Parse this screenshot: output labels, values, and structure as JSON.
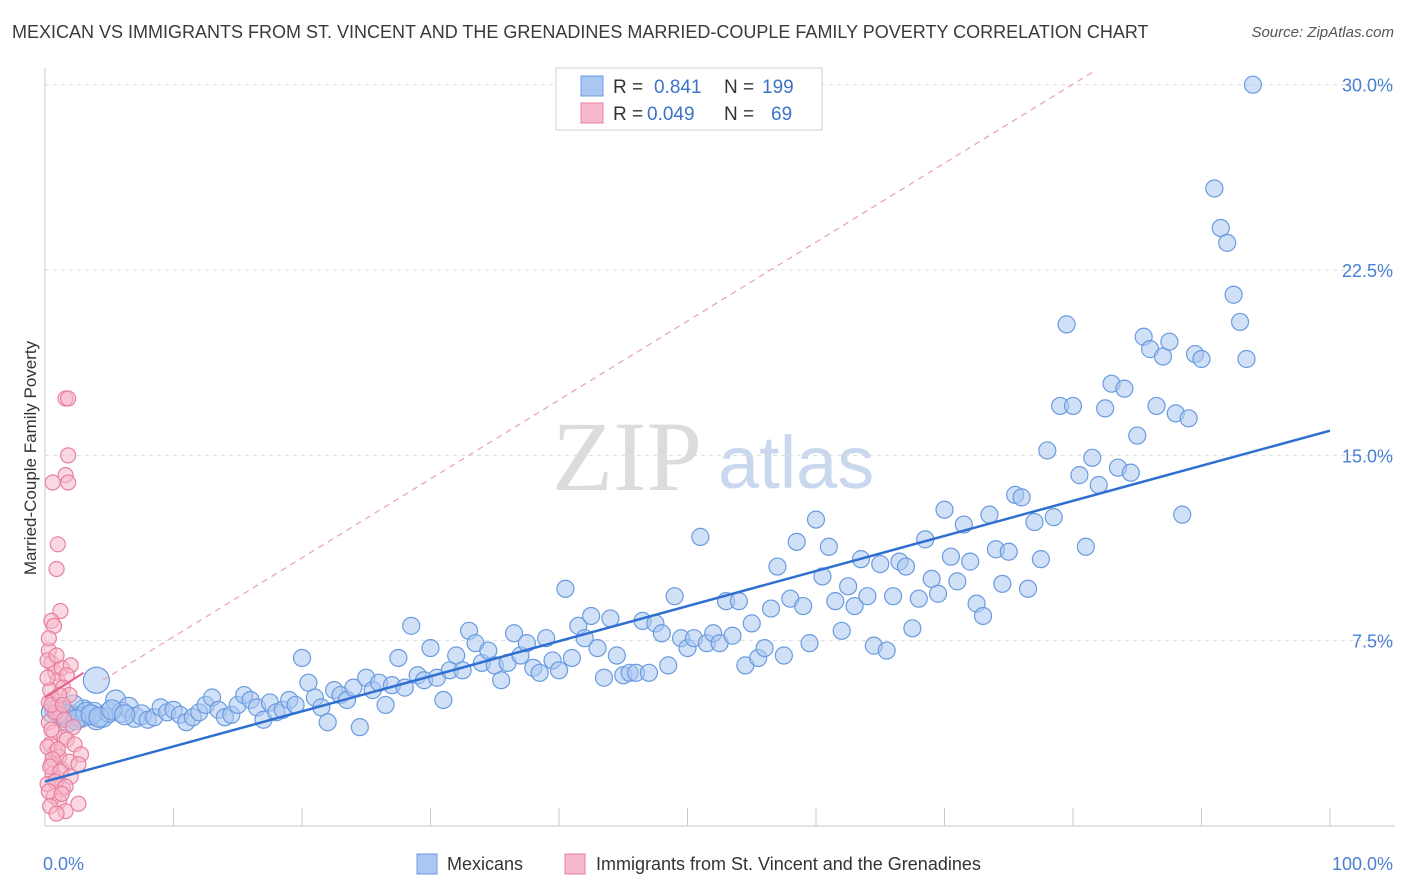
{
  "title": "MEXICAN VS IMMIGRANTS FROM ST. VINCENT AND THE GRENADINES MARRIED-COUPLE FAMILY POVERTY CORRELATION CHART",
  "source": "Source: ZipAtlas.com",
  "watermark": {
    "zip": "ZIP",
    "atlas": "atlas"
  },
  "legend": {
    "rows": [
      {
        "r_label": "R =",
        "r_value": "0.841",
        "n_label": "N =",
        "n_value": "199",
        "color": "#a9c7f0",
        "edge": "#6a9be0"
      },
      {
        "r_label": "R =",
        "r_value": "0.049",
        "n_label": "N =",
        "n_value": "69",
        "color": "#f6b8cb",
        "edge": "#e8809f"
      }
    ]
  },
  "bottom_legend": [
    {
      "label": "Mexicans",
      "color": "#a9c7f0",
      "edge": "#6a9be0"
    },
    {
      "label": "Immigrants from St. Vincent and the Grenadines",
      "color": "#f6b8cb",
      "edge": "#e8809f"
    }
  ],
  "chart_data": {
    "type": "scatter",
    "title": "MEXICAN VS IMMIGRANTS FROM ST. VINCENT AND THE GRENADINES MARRIED-COUPLE FAMILY POVERTY CORRELATION CHART",
    "xlabel": "",
    "ylabel": "Married-Couple Family Poverty",
    "xlim": [
      0,
      100
    ],
    "ylim": [
      0,
      31
    ],
    "x_tick_labels": [
      "0.0%",
      "100.0%"
    ],
    "y_ticks": [
      7.5,
      15.0,
      22.5,
      30.0
    ],
    "y_tick_labels": [
      "7.5%",
      "15.0%",
      "22.5%",
      "30.0%"
    ],
    "grid": "horizontal dashed",
    "legend_position": "top-center",
    "series": [
      {
        "name": "Mexicans",
        "color": "#a9c7f0",
        "edge": "#6a9be0",
        "trend": {
          "x": [
            0,
            100
          ],
          "y": [
            1.8,
            16.0
          ],
          "color": "#2f6fd0"
        },
        "points": [
          [
            1.5,
            4.6
          ],
          [
            2.0,
            4.5
          ],
          [
            2.5,
            4.4
          ],
          [
            3.0,
            4.7
          ],
          [
            3.5,
            4.5
          ],
          [
            4.0,
            4.3
          ],
          [
            1.0,
            4.8
          ],
          [
            1.8,
            4.2
          ],
          [
            2.2,
            4.9
          ],
          [
            3.8,
            4.6
          ],
          [
            4.5,
            4.4
          ],
          [
            5.0,
            4.6
          ],
          [
            4.0,
            5.9
          ],
          [
            5.5,
            5.1
          ],
          [
            6.0,
            4.6
          ],
          [
            6.5,
            4.8
          ],
          [
            7.0,
            4.4
          ],
          [
            7.5,
            4.5
          ],
          [
            8.0,
            4.3
          ],
          [
            8.5,
            4.4
          ],
          [
            9.0,
            4.8
          ],
          [
            9.5,
            4.6
          ],
          [
            10.0,
            4.7
          ],
          [
            10.5,
            4.5
          ],
          [
            11.0,
            4.2
          ],
          [
            11.5,
            4.4
          ],
          [
            12.0,
            4.6
          ],
          [
            12.5,
            4.9
          ],
          [
            13.0,
            5.2
          ],
          [
            13.5,
            4.7
          ],
          [
            14.0,
            4.4
          ],
          [
            14.5,
            4.5
          ],
          [
            15.0,
            4.9
          ],
          [
            15.5,
            5.3
          ],
          [
            16.0,
            5.1
          ],
          [
            16.5,
            4.8
          ],
          [
            17.0,
            4.3
          ],
          [
            17.5,
            5.0
          ],
          [
            18.0,
            4.6
          ],
          [
            18.5,
            4.7
          ],
          [
            19.0,
            5.1
          ],
          [
            19.5,
            4.9
          ],
          [
            20.0,
            6.8
          ],
          [
            20.5,
            5.8
          ],
          [
            21.0,
            5.2
          ],
          [
            21.5,
            4.8
          ],
          [
            22.0,
            4.2
          ],
          [
            22.5,
            5.5
          ],
          [
            23.0,
            5.3
          ],
          [
            23.5,
            5.1
          ],
          [
            24.0,
            5.6
          ],
          [
            24.5,
            4.0
          ],
          [
            25.0,
            6.0
          ],
          [
            25.5,
            5.5
          ],
          [
            26.0,
            5.8
          ],
          [
            26.5,
            4.9
          ],
          [
            27.0,
            5.7
          ],
          [
            27.5,
            6.8
          ],
          [
            28.0,
            5.6
          ],
          [
            28.5,
            8.1
          ],
          [
            29.0,
            6.1
          ],
          [
            29.5,
            5.9
          ],
          [
            30.0,
            7.2
          ],
          [
            30.5,
            6.0
          ],
          [
            31.0,
            5.1
          ],
          [
            31.5,
            6.3
          ],
          [
            32.0,
            6.9
          ],
          [
            32.5,
            6.3
          ],
          [
            33.0,
            7.9
          ],
          [
            33.5,
            7.4
          ],
          [
            34.0,
            6.6
          ],
          [
            34.5,
            7.1
          ],
          [
            35.0,
            6.5
          ],
          [
            35.5,
            5.9
          ],
          [
            36.0,
            6.6
          ],
          [
            36.5,
            7.8
          ],
          [
            37.0,
            6.9
          ],
          [
            37.5,
            7.4
          ],
          [
            38.0,
            6.4
          ],
          [
            38.5,
            6.2
          ],
          [
            39.0,
            7.6
          ],
          [
            39.5,
            6.7
          ],
          [
            40.0,
            6.3
          ],
          [
            40.5,
            9.6
          ],
          [
            41.0,
            6.8
          ],
          [
            41.5,
            8.1
          ],
          [
            42.0,
            7.6
          ],
          [
            42.5,
            8.5
          ],
          [
            43.0,
            7.2
          ],
          [
            43.5,
            6.0
          ],
          [
            44.0,
            8.4
          ],
          [
            44.5,
            6.9
          ],
          [
            45.0,
            6.1
          ],
          [
            45.5,
            6.2
          ],
          [
            46.0,
            6.2
          ],
          [
            46.5,
            8.3
          ],
          [
            47.0,
            6.2
          ],
          [
            47.5,
            8.2
          ],
          [
            48.0,
            7.8
          ],
          [
            48.5,
            6.5
          ],
          [
            49.0,
            9.3
          ],
          [
            49.5,
            7.6
          ],
          [
            50.0,
            7.2
          ],
          [
            50.5,
            7.6
          ],
          [
            51.0,
            11.7
          ],
          [
            51.5,
            7.4
          ],
          [
            52.0,
            7.8
          ],
          [
            52.5,
            7.4
          ],
          [
            53.0,
            9.1
          ],
          [
            53.5,
            7.7
          ],
          [
            54.0,
            9.1
          ],
          [
            54.5,
            6.5
          ],
          [
            55.0,
            8.2
          ],
          [
            55.5,
            6.8
          ],
          [
            56.0,
            7.2
          ],
          [
            56.5,
            8.8
          ],
          [
            57.0,
            10.5
          ],
          [
            57.5,
            6.9
          ],
          [
            58.0,
            9.2
          ],
          [
            58.5,
            11.5
          ],
          [
            59.0,
            8.9
          ],
          [
            59.5,
            7.4
          ],
          [
            60.0,
            12.4
          ],
          [
            60.5,
            10.1
          ],
          [
            61.0,
            11.3
          ],
          [
            61.5,
            9.1
          ],
          [
            62.0,
            7.9
          ],
          [
            62.5,
            9.7
          ],
          [
            63.0,
            8.9
          ],
          [
            63.5,
            10.8
          ],
          [
            64.0,
            9.3
          ],
          [
            64.5,
            7.3
          ],
          [
            65.0,
            10.6
          ],
          [
            65.5,
            7.1
          ],
          [
            66.0,
            9.3
          ],
          [
            66.5,
            10.7
          ],
          [
            67.0,
            10.5
          ],
          [
            67.5,
            8.0
          ],
          [
            68.0,
            9.2
          ],
          [
            68.5,
            11.6
          ],
          [
            69.0,
            10.0
          ],
          [
            69.5,
            9.4
          ],
          [
            70.0,
            12.8
          ],
          [
            70.5,
            10.9
          ],
          [
            71.0,
            9.9
          ],
          [
            71.5,
            12.2
          ],
          [
            72.0,
            10.7
          ],
          [
            72.5,
            9.0
          ],
          [
            73.0,
            8.5
          ],
          [
            73.5,
            12.6
          ],
          [
            74.0,
            11.2
          ],
          [
            74.5,
            9.8
          ],
          [
            75.0,
            11.1
          ],
          [
            75.5,
            13.4
          ],
          [
            76.0,
            13.3
          ],
          [
            76.5,
            9.6
          ],
          [
            77.0,
            12.3
          ],
          [
            77.5,
            10.8
          ],
          [
            78.0,
            15.2
          ],
          [
            78.5,
            12.5
          ],
          [
            79.0,
            17.0
          ],
          [
            79.5,
            20.3
          ],
          [
            80.0,
            17.0
          ],
          [
            80.5,
            14.2
          ],
          [
            81.0,
            11.3
          ],
          [
            81.5,
            14.9
          ],
          [
            82.0,
            13.8
          ],
          [
            82.5,
            16.9
          ],
          [
            83.0,
            17.9
          ],
          [
            83.5,
            14.5
          ],
          [
            84.0,
            17.7
          ],
          [
            84.5,
            14.3
          ],
          [
            85.0,
            15.8
          ],
          [
            85.5,
            19.8
          ],
          [
            86.0,
            19.3
          ],
          [
            86.5,
            17.0
          ],
          [
            87.0,
            19.0
          ],
          [
            87.5,
            19.6
          ],
          [
            88.0,
            16.7
          ],
          [
            88.5,
            12.6
          ],
          [
            89.0,
            16.5
          ],
          [
            89.5,
            19.1
          ],
          [
            90.0,
            18.9
          ],
          [
            91.0,
            25.8
          ],
          [
            91.5,
            24.2
          ],
          [
            92.0,
            23.6
          ],
          [
            92.5,
            21.5
          ],
          [
            93.0,
            20.4
          ],
          [
            93.5,
            18.9
          ],
          [
            94.0,
            30.0
          ],
          [
            1.2,
            4.5
          ],
          [
            2.8,
            4.4
          ],
          [
            3.2,
            4.6
          ],
          [
            0.8,
            4.7
          ],
          [
            1.6,
            4.5
          ],
          [
            2.4,
            4.3
          ],
          [
            3.6,
            4.5
          ],
          [
            0.5,
            4.6
          ],
          [
            4.2,
            4.4
          ],
          [
            5.2,
            4.7
          ],
          [
            6.2,
            4.5
          ]
        ]
      },
      {
        "name": "Immigrants from St. Vincent and the Grenadines",
        "color": "#f6b8cb",
        "edge": "#e8809f",
        "trend": {
          "x": [
            0,
            3.0
          ],
          "y": [
            5.2,
            6.2
          ],
          "color": "#e5628c"
        },
        "points": [
          [
            0.3,
            7.1
          ],
          [
            0.5,
            6.6
          ],
          [
            0.8,
            6.2
          ],
          [
            1.0,
            5.9
          ],
          [
            0.4,
            5.5
          ],
          [
            0.6,
            5.1
          ],
          [
            0.9,
            4.8
          ],
          [
            1.2,
            4.5
          ],
          [
            0.3,
            4.2
          ],
          [
            0.7,
            3.8
          ],
          [
            1.5,
            3.6
          ],
          [
            0.4,
            3.3
          ],
          [
            0.8,
            3.0
          ],
          [
            1.1,
            2.8
          ],
          [
            0.5,
            2.5
          ],
          [
            1.3,
            2.3
          ],
          [
            0.6,
            2.1
          ],
          [
            1.0,
            1.9
          ],
          [
            0.2,
            1.7
          ],
          [
            1.4,
            1.5
          ],
          [
            0.7,
            1.2
          ],
          [
            1.1,
            1.0
          ],
          [
            0.4,
            0.8
          ],
          [
            1.6,
            0.6
          ],
          [
            0.9,
            0.5
          ],
          [
            2.6,
            0.9
          ],
          [
            1.6,
            17.3
          ],
          [
            1.8,
            17.3
          ],
          [
            1.8,
            15.0
          ],
          [
            1.6,
            14.2
          ],
          [
            1.8,
            13.9
          ],
          [
            0.6,
            13.9
          ],
          [
            1.0,
            11.4
          ],
          [
            0.9,
            10.4
          ],
          [
            1.2,
            8.7
          ],
          [
            0.5,
            8.3
          ],
          [
            0.7,
            8.1
          ],
          [
            0.3,
            7.6
          ],
          [
            1.3,
            6.4
          ],
          [
            2.0,
            6.5
          ],
          [
            1.7,
            6.1
          ],
          [
            0.2,
            6.0
          ],
          [
            1.4,
            5.6
          ],
          [
            1.9,
            5.3
          ],
          [
            0.3,
            5.0
          ],
          [
            0.8,
            4.6
          ],
          [
            1.5,
            4.3
          ],
          [
            2.2,
            4.0
          ],
          [
            0.5,
            3.9
          ],
          [
            1.7,
            3.5
          ],
          [
            2.3,
            3.3
          ],
          [
            0.2,
            3.2
          ],
          [
            1.0,
            3.1
          ],
          [
            2.8,
            2.9
          ],
          [
            0.6,
            2.7
          ],
          [
            1.9,
            2.6
          ],
          [
            2.6,
            2.5
          ],
          [
            0.4,
            2.4
          ],
          [
            1.2,
            2.2
          ],
          [
            2.0,
            2.0
          ],
          [
            0.8,
            1.8
          ],
          [
            1.6,
            1.6
          ],
          [
            0.3,
            1.4
          ],
          [
            1.3,
            1.3
          ],
          [
            0.5,
            4.9
          ],
          [
            1.1,
            5.3
          ],
          [
            0.2,
            6.7
          ],
          [
            0.9,
            6.9
          ],
          [
            1.4,
            4.9
          ]
        ]
      }
    ]
  }
}
